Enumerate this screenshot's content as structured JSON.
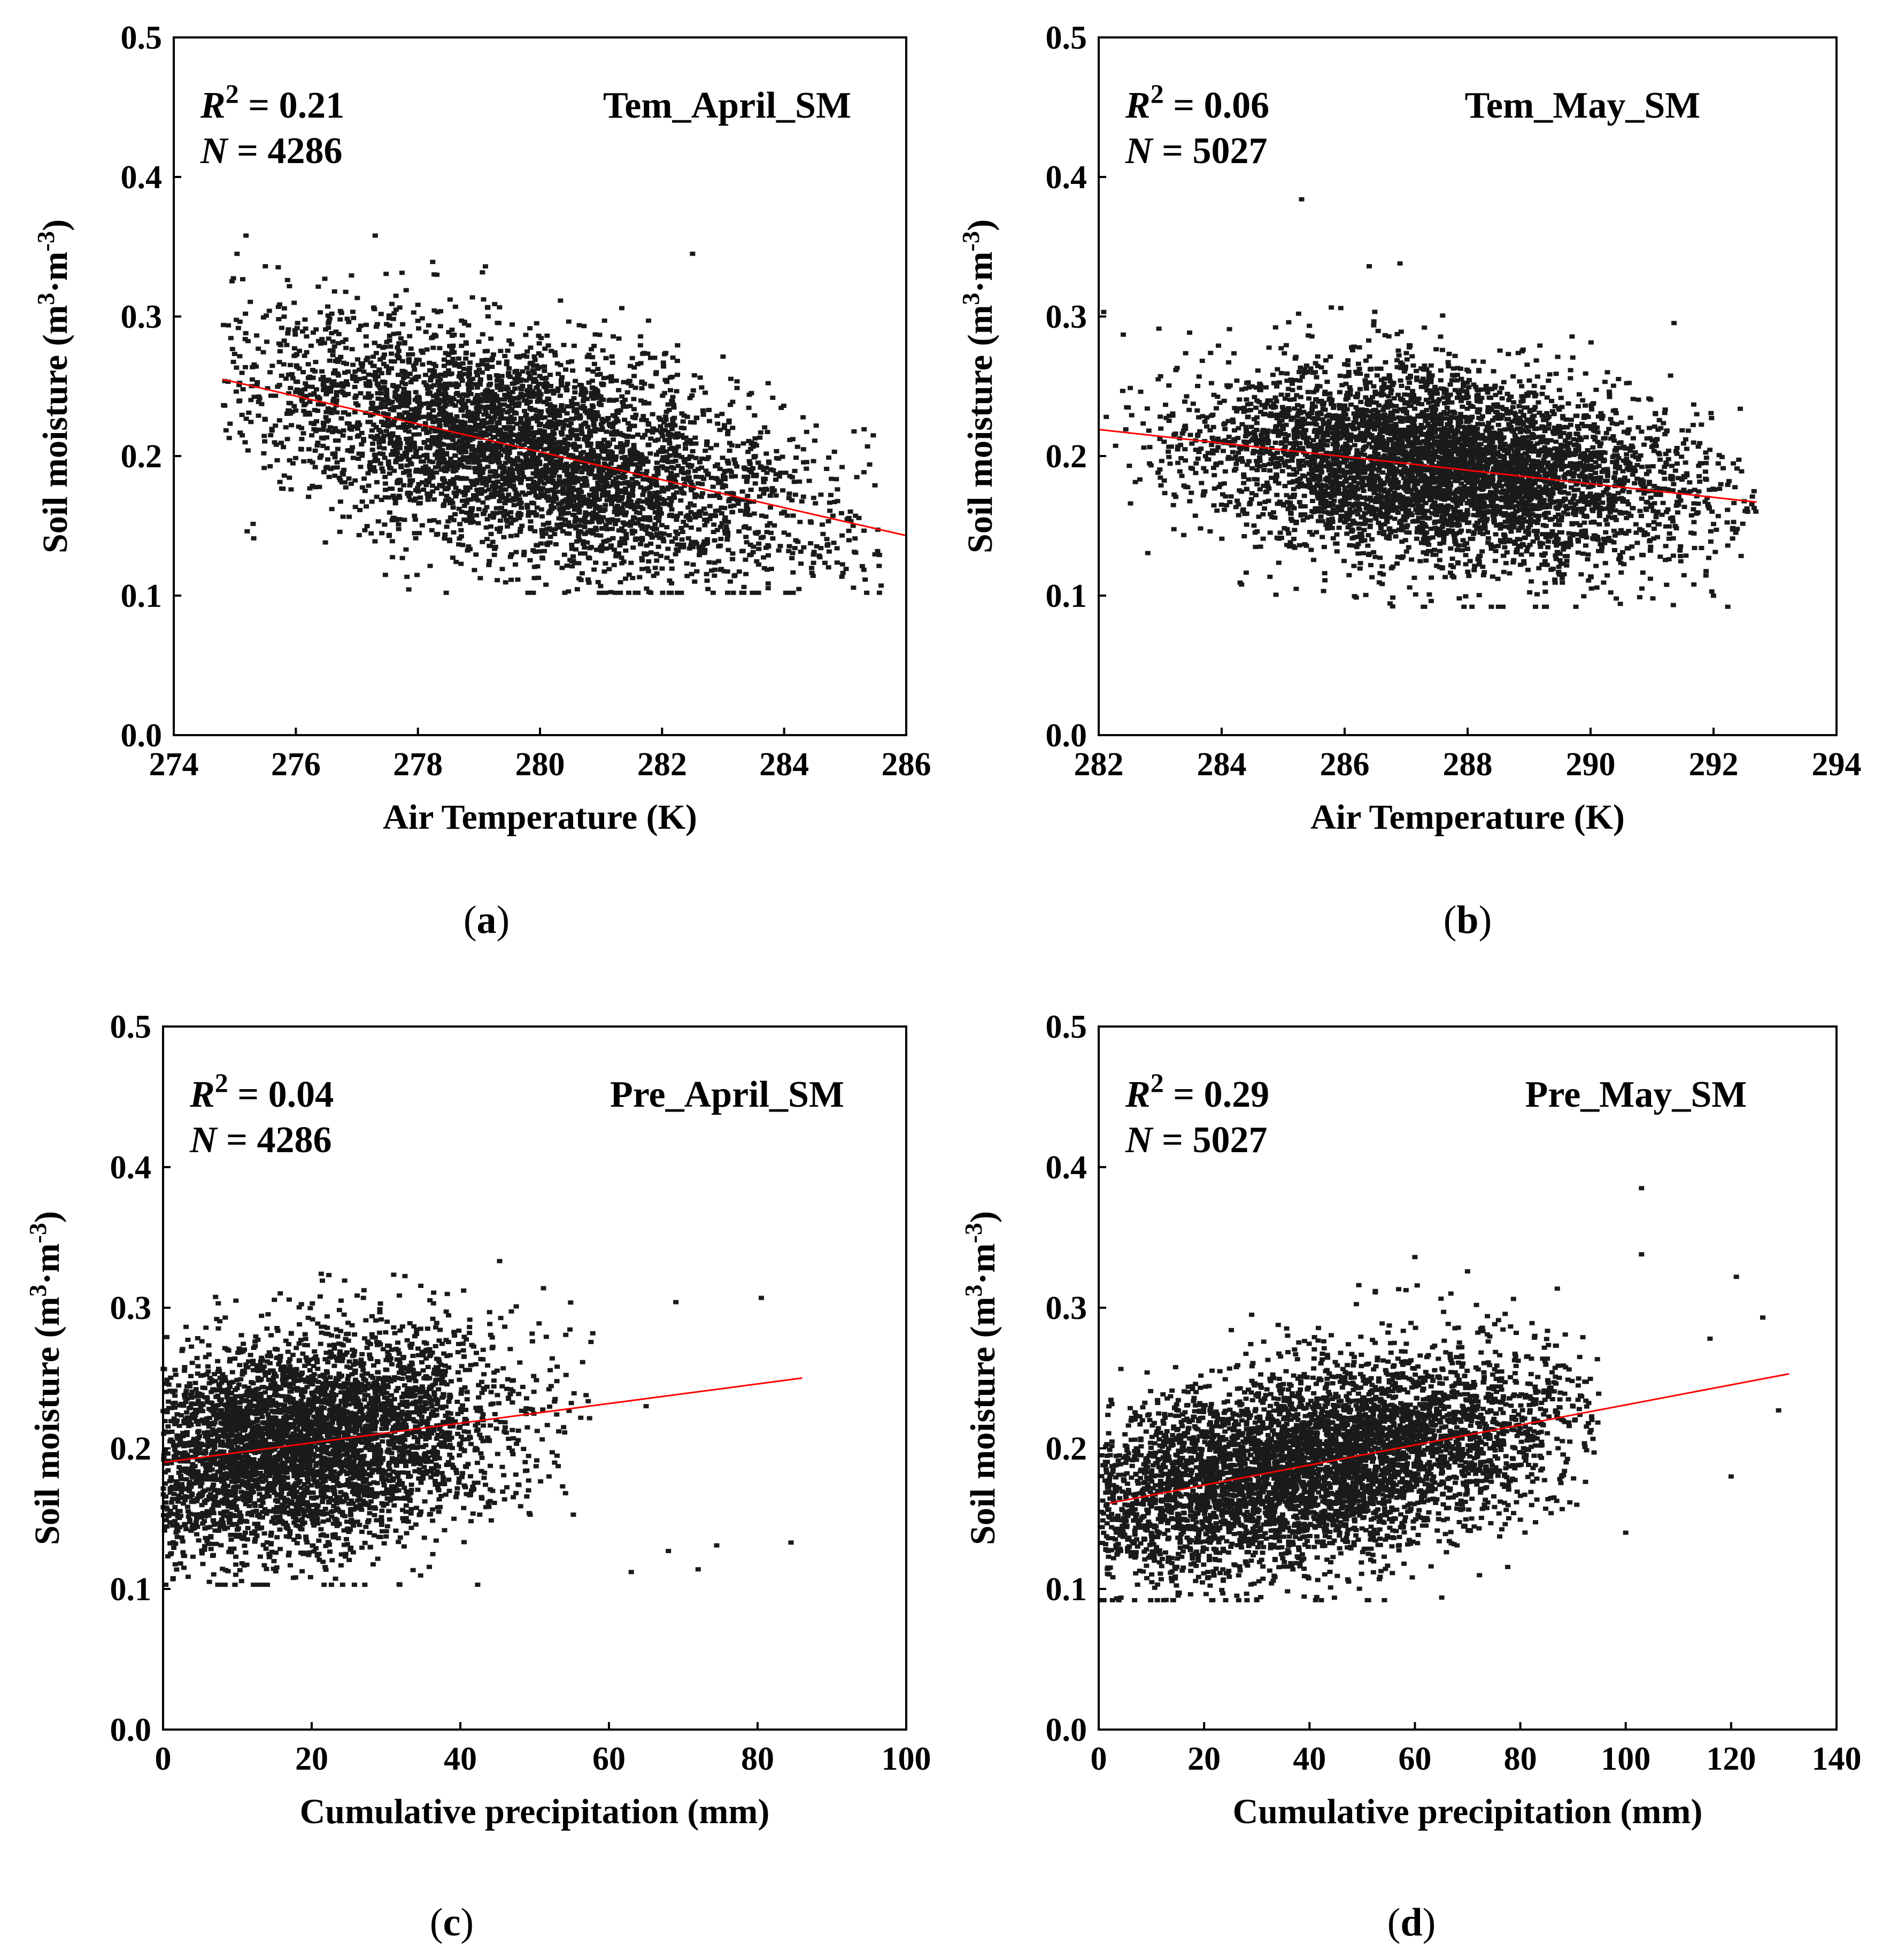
{
  "figure": {
    "description_label": "Soil moisture vs air temperature and cumulative precipitation"
  },
  "colors": {
    "points": "#1a1a1a",
    "fit_line": "#ff0000",
    "axes": "#000000",
    "background": "#ffffff"
  },
  "chart_data": [
    {
      "type": "scatter",
      "panel_label": "(a)",
      "title": "Tem_April_SM",
      "r2_label": "R",
      "r2_sup": "2",
      "r2_value": " = 0.21",
      "n_label": "N",
      "n_value": " = 4286",
      "n_points": 4286,
      "xlabel": "Air Temperature (K)",
      "ylabel_prefix": "Soil moisture (m",
      "ylabel_sup1": "3",
      "ylabel_mid": "·m",
      "ylabel_sup2": "-3",
      "ylabel_suffix": ")",
      "xlim": [
        274,
        286
      ],
      "ylim": [
        0.0,
        0.5
      ],
      "xticks": [
        "274",
        "276",
        "278",
        "280",
        "282",
        "284",
        "286"
      ],
      "yticks": [
        "0.0",
        "0.1",
        "0.2",
        "0.3",
        "0.4",
        "0.5"
      ],
      "fit": {
        "x": [
          274.8,
          286
        ],
        "y": [
          0.255,
          0.143
        ]
      },
      "cloud": {
        "x_center": 279.8,
        "x_spread": 2.3,
        "x_min": 274.8,
        "x_max": 285.6,
        "y_spread": 0.038,
        "y_min": 0.102,
        "y_max": 0.358,
        "outliers": [
          [
            277.3,
            0.358
          ],
          [
            282.5,
            0.345
          ],
          [
            275.5,
            0.336
          ],
          [
            285.4,
            0.194
          ]
        ]
      }
    },
    {
      "type": "scatter",
      "panel_label": "(b)",
      "title": "Tem_May_SM",
      "r2_label": "R",
      "r2_sup": "2",
      "r2_value": " = 0.06",
      "n_label": "N",
      "n_value": " = 5027",
      "n_points": 5027,
      "xlabel": "Air Temperature (K)",
      "ylabel_prefix": "Soil moisture (m",
      "ylabel_sup1": "3",
      "ylabel_mid": "·m",
      "ylabel_sup2": "-3",
      "ylabel_suffix": ")",
      "xlim": [
        282,
        294
      ],
      "ylim": [
        0.0,
        0.5
      ],
      "xticks": [
        "282",
        "284",
        "286",
        "288",
        "290",
        "292",
        "294"
      ],
      "yticks": [
        "0.0",
        "0.1",
        "0.2",
        "0.3",
        "0.4",
        "0.5"
      ],
      "fit": {
        "x": [
          282,
          292.7
        ],
        "y": [
          0.219,
          0.167
        ]
      },
      "cloud": {
        "x_center": 287.6,
        "x_spread": 2.0,
        "x_min": 282.0,
        "x_max": 292.7,
        "y_spread": 0.034,
        "y_min": 0.092,
        "y_max": 0.34,
        "outliers": [
          [
            285.3,
            0.384
          ],
          [
            286.9,
            0.338
          ],
          [
            286.4,
            0.336
          ],
          [
            282.4,
            0.287
          ]
        ]
      }
    },
    {
      "type": "scatter",
      "panel_label": "(c)",
      "title": "Pre_April_SM",
      "r2_label": "R",
      "r2_sup": "2",
      "r2_value": " = 0.04",
      "n_label": "N",
      "n_value": " = 4286",
      "n_points": 4286,
      "xlabel": "Cumulative precipitation (mm)",
      "ylabel_prefix": "Soil moisture (m",
      "ylabel_sup1": "3",
      "ylabel_mid": "·m",
      "ylabel_sup2": "-3",
      "ylabel_suffix": ")",
      "xlim": [
        0,
        100
      ],
      "ylim": [
        0.0,
        0.5
      ],
      "xticks": [
        "0",
        "20",
        "40",
        "60",
        "80",
        "100"
      ],
      "yticks": [
        "0.0",
        "0.1",
        "0.2",
        "0.3",
        "0.4",
        "0.5"
      ],
      "fit": {
        "x": [
          0,
          86
        ],
        "y": [
          0.19,
          0.25
        ]
      },
      "cloud": {
        "x_center": 18,
        "x_spread": 14,
        "x_min": 0.0,
        "x_max": 58,
        "y_spread": 0.038,
        "y_min": 0.103,
        "y_max": 0.358,
        "outliers": [
          [
            80.5,
            0.307
          ],
          [
            84.5,
            0.133
          ],
          [
            74.5,
            0.131
          ],
          [
            68,
            0.127
          ],
          [
            63,
            0.112
          ],
          [
            72,
            0.114
          ],
          [
            69,
            0.304
          ],
          [
            65,
            0.23
          ]
        ]
      }
    },
    {
      "type": "scatter",
      "panel_label": "(d)",
      "title": "Pre_May_SM",
      "r2_label": "R",
      "r2_sup": "2",
      "r2_value": " = 0.29",
      "n_label": "N",
      "n_value": " = 5027",
      "n_points": 5027,
      "xlabel": "Cumulative precipitation (mm)",
      "ylabel_prefix": "Soil moisture (m",
      "ylabel_sup1": "3",
      "ylabel_mid": "·m",
      "ylabel_sup2": "-3",
      "ylabel_suffix": ")",
      "xlim": [
        0,
        140
      ],
      "ylim": [
        0.0,
        0.5
      ],
      "xticks": [
        "0",
        "20",
        "40",
        "60",
        "80",
        "100",
        "120",
        "140"
      ],
      "yticks": [
        "0.0",
        "0.1",
        "0.2",
        "0.3",
        "0.4",
        "0.5"
      ],
      "fit": {
        "x": [
          2,
          131
        ],
        "y": [
          0.161,
          0.253
        ]
      },
      "cloud": {
        "x_center": 40,
        "x_spread": 25,
        "x_min": 0.5,
        "x_max": 95,
        "y_spread": 0.034,
        "y_min": 0.092,
        "y_max": 0.34,
        "outliers": [
          [
            103,
            0.385
          ],
          [
            103,
            0.338
          ],
          [
            121,
            0.322
          ],
          [
            100,
            0.14
          ],
          [
            120,
            0.18
          ],
          [
            129,
            0.227
          ],
          [
            126,
            0.293
          ],
          [
            116,
            0.278
          ],
          [
            60,
            0.336
          ]
        ]
      }
    }
  ]
}
